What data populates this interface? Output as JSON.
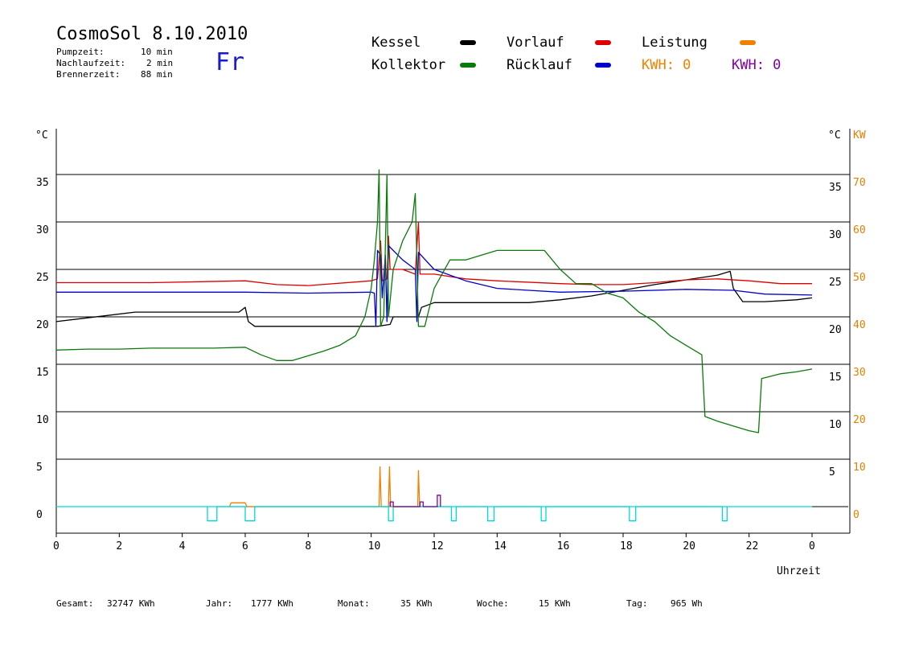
{
  "header": {
    "title": "CosmoSol 8.10.2010",
    "pumpzeit_label": "Pumpzeit:",
    "pumpzeit_value": "10 min",
    "nachlaufzeit_label": "Nachlaufzeit:",
    "nachlaufzeit_value": "2 min",
    "brennerzeit_label": "Brennerzeit:",
    "brennerzeit_value": "88 min",
    "weekday": "Fr"
  },
  "legend": {
    "kessel": "Kessel",
    "kollektor": "Kollektor",
    "vorlauf": "Vorlauf",
    "ruecklauf": "Rücklauf",
    "leistung": "Leistung",
    "kwh_orange": "KWH: 0",
    "kwh_purple": "KWH: 0"
  },
  "footer": {
    "gesamt_label": "Gesamt:",
    "gesamt_value": "32747 KWh",
    "jahr_label": "Jahr:",
    "jahr_value": "1777 KWh",
    "monat_label": "Monat:",
    "monat_value": "35 KWh",
    "woche_label": "Woche:",
    "woche_value": "15 KWh",
    "tag_label": "Tag:",
    "tag_value": "965 Wh"
  },
  "colors": {
    "kessel": "#000000",
    "kollektor": "#0a7a0a",
    "vorlauf": "#dd0000",
    "ruecklauf": "#0000cc",
    "leistung": "#f08000",
    "kwh_purple": "#8000a0",
    "pump": "#00d8d8"
  },
  "chart_data": {
    "type": "line",
    "xlabel": "Uhrzeit",
    "ylabel_left": "°C",
    "ylabel_right_1": "°C",
    "ylabel_right_2": "KW",
    "xlim": [
      0,
      24
    ],
    "ylim": [
      -2.5,
      40
    ],
    "x_ticks": [
      "0",
      "2",
      "4",
      "6",
      "8",
      "10",
      "12",
      "14",
      "16",
      "18",
      "20",
      "22",
      "0"
    ],
    "y_ticks_left": [
      "0",
      "5",
      "10",
      "15",
      "20",
      "25",
      "30",
      "35"
    ],
    "y_ticks_right": [
      "5",
      "10",
      "15",
      "20",
      "25",
      "30",
      "35"
    ],
    "y_ticks_kw": [
      "0",
      "10",
      "20",
      "30",
      "40",
      "50",
      "60",
      "70"
    ],
    "series": [
      {
        "name": "Kessel",
        "color": "#000000",
        "points": [
          [
            0,
            19.5
          ],
          [
            1,
            19.9
          ],
          [
            2.5,
            20.5
          ],
          [
            5.8,
            20.5
          ],
          [
            6.0,
            21.0
          ],
          [
            6.1,
            19.5
          ],
          [
            6.3,
            19.0
          ],
          [
            10.2,
            19.0
          ],
          [
            10.6,
            19.2
          ],
          [
            10.7,
            20.0
          ],
          [
            11.5,
            20.0
          ],
          [
            11.6,
            21.0
          ],
          [
            12.0,
            21.5
          ],
          [
            15.0,
            21.5
          ],
          [
            16.0,
            21.8
          ],
          [
            17.0,
            22.2
          ],
          [
            18.0,
            22.8
          ],
          [
            19.0,
            23.4
          ],
          [
            20.0,
            23.9
          ],
          [
            21.0,
            24.4
          ],
          [
            21.4,
            24.8
          ],
          [
            21.5,
            23.0
          ],
          [
            21.8,
            21.6
          ],
          [
            22.5,
            21.6
          ],
          [
            23.5,
            21.8
          ],
          [
            24.0,
            22.0
          ]
        ]
      },
      {
        "name": "Vorlauf",
        "color": "#dd0000",
        "points": [
          [
            0,
            23.6
          ],
          [
            3,
            23.6
          ],
          [
            6,
            23.8
          ],
          [
            7,
            23.4
          ],
          [
            8,
            23.3
          ],
          [
            10,
            23.8
          ],
          [
            10.2,
            24.0
          ],
          [
            10.3,
            28.0
          ],
          [
            10.35,
            23.8
          ],
          [
            10.5,
            24.0
          ],
          [
            10.55,
            28.5
          ],
          [
            10.6,
            25.0
          ],
          [
            11.0,
            25.0
          ],
          [
            11.4,
            24.5
          ],
          [
            11.5,
            30.0
          ],
          [
            11.55,
            24.5
          ],
          [
            12.0,
            24.5
          ],
          [
            13.0,
            24.0
          ],
          [
            14.0,
            23.8
          ],
          [
            16.0,
            23.5
          ],
          [
            17.0,
            23.4
          ],
          [
            18.0,
            23.4
          ],
          [
            19.0,
            23.6
          ],
          [
            20.0,
            23.9
          ],
          [
            21.0,
            24.0
          ],
          [
            22.0,
            23.8
          ],
          [
            23.0,
            23.5
          ],
          [
            24.0,
            23.5
          ]
        ]
      },
      {
        "name": "Rücklauf",
        "color": "#0000cc",
        "points": [
          [
            0,
            22.6
          ],
          [
            4,
            22.6
          ],
          [
            6,
            22.6
          ],
          [
            8,
            22.5
          ],
          [
            10,
            22.6
          ],
          [
            10.1,
            22.5
          ],
          [
            10.15,
            19.0
          ],
          [
            10.2,
            27.0
          ],
          [
            10.3,
            26.5
          ],
          [
            10.35,
            22.0
          ],
          [
            10.45,
            26.5
          ],
          [
            10.5,
            19.5
          ],
          [
            10.55,
            27.5
          ],
          [
            11.0,
            26.0
          ],
          [
            11.4,
            25.0
          ],
          [
            11.45,
            19.5
          ],
          [
            11.5,
            26.8
          ],
          [
            12.0,
            25.0
          ],
          [
            13.0,
            23.8
          ],
          [
            14.0,
            23.0
          ],
          [
            15.0,
            22.8
          ],
          [
            16.0,
            22.6
          ],
          [
            18.0,
            22.7
          ],
          [
            20.0,
            22.9
          ],
          [
            21.5,
            22.8
          ],
          [
            22.5,
            22.4
          ],
          [
            24.0,
            22.3
          ]
        ]
      },
      {
        "name": "Kollektor",
        "color": "#0a7a0a",
        "points": [
          [
            0,
            16.5
          ],
          [
            1,
            16.6
          ],
          [
            2,
            16.6
          ],
          [
            3,
            16.7
          ],
          [
            4,
            16.7
          ],
          [
            5,
            16.7
          ],
          [
            6,
            16.8
          ],
          [
            6.5,
            16.0
          ],
          [
            7.0,
            15.4
          ],
          [
            7.5,
            15.4
          ],
          [
            8.0,
            15.9
          ],
          [
            8.5,
            16.4
          ],
          [
            9.0,
            17.0
          ],
          [
            9.5,
            18.0
          ],
          [
            9.8,
            20.0
          ],
          [
            10.0,
            23.0
          ],
          [
            10.1,
            26.0
          ],
          [
            10.2,
            30.0
          ],
          [
            10.25,
            35.5
          ],
          [
            10.3,
            19.0
          ],
          [
            10.4,
            20.0
          ],
          [
            10.5,
            35.0
          ],
          [
            10.55,
            20.0
          ],
          [
            10.7,
            25.0
          ],
          [
            11.0,
            28.0
          ],
          [
            11.3,
            30.0
          ],
          [
            11.4,
            33.0
          ],
          [
            11.5,
            19.0
          ],
          [
            11.7,
            19.0
          ],
          [
            12.0,
            23.0
          ],
          [
            12.5,
            26.0
          ],
          [
            13.0,
            26.0
          ],
          [
            13.5,
            26.5
          ],
          [
            14.0,
            27.0
          ],
          [
            15.0,
            27.0
          ],
          [
            15.5,
            27.0
          ],
          [
            16.0,
            25.0
          ],
          [
            16.5,
            23.5
          ],
          [
            17.0,
            23.5
          ],
          [
            17.5,
            22.5
          ],
          [
            18.0,
            22.0
          ],
          [
            18.5,
            20.5
          ],
          [
            19.0,
            19.5
          ],
          [
            19.5,
            18.0
          ],
          [
            20.0,
            17.0
          ],
          [
            20.5,
            16.0
          ],
          [
            20.6,
            9.5
          ],
          [
            21.0,
            9.0
          ],
          [
            21.5,
            8.5
          ],
          [
            22.0,
            8.0
          ],
          [
            22.3,
            7.8
          ],
          [
            22.4,
            13.5
          ],
          [
            23.0,
            14.0
          ],
          [
            23.5,
            14.2
          ],
          [
            24.0,
            14.5
          ]
        ]
      },
      {
        "name": "Leistung",
        "color": "#f08000",
        "points": [
          [
            5.5,
            0
          ],
          [
            5.55,
            0.4
          ],
          [
            6.0,
            0.4
          ],
          [
            6.05,
            0
          ],
          [
            10.25,
            0
          ],
          [
            10.28,
            4.2
          ],
          [
            10.32,
            0
          ],
          [
            10.55,
            0
          ],
          [
            10.58,
            4.2
          ],
          [
            10.62,
            0
          ],
          [
            11.48,
            0
          ],
          [
            11.5,
            3.8
          ],
          [
            11.54,
            0
          ]
        ]
      },
      {
        "name": "Pumpe",
        "color": "#00d8d8",
        "points": [
          [
            4.8,
            0
          ],
          [
            4.8,
            -1.5
          ],
          [
            5.1,
            -1.5
          ],
          [
            5.1,
            0
          ],
          [
            6.0,
            0
          ],
          [
            6.0,
            -1.5
          ],
          [
            6.3,
            -1.5
          ],
          [
            6.3,
            0
          ],
          [
            10.55,
            0
          ],
          [
            10.55,
            -1.5
          ],
          [
            10.7,
            -1.5
          ],
          [
            10.7,
            0
          ],
          [
            12.55,
            0
          ],
          [
            12.55,
            -1.5
          ],
          [
            12.7,
            -1.5
          ],
          [
            12.7,
            0
          ],
          [
            13.7,
            0
          ],
          [
            13.7,
            -1.5
          ],
          [
            13.9,
            -1.5
          ],
          [
            13.9,
            0
          ],
          [
            15.4,
            0
          ],
          [
            15.4,
            -1.5
          ],
          [
            15.55,
            -1.5
          ],
          [
            15.55,
            0
          ],
          [
            18.2,
            0
          ],
          [
            18.2,
            -1.5
          ],
          [
            18.4,
            -1.5
          ],
          [
            18.4,
            0
          ],
          [
            21.15,
            0
          ],
          [
            21.15,
            -1.5
          ],
          [
            21.3,
            -1.5
          ],
          [
            21.3,
            0
          ]
        ]
      },
      {
        "name": "KWH",
        "color": "#8000a0",
        "points": [
          [
            10.6,
            0
          ],
          [
            10.6,
            0.5
          ],
          [
            10.7,
            0.5
          ],
          [
            10.7,
            0
          ],
          [
            11.55,
            0
          ],
          [
            11.55,
            0.5
          ],
          [
            11.65,
            0.5
          ],
          [
            11.65,
            0
          ],
          [
            12.1,
            0
          ],
          [
            12.1,
            1.2
          ],
          [
            12.2,
            1.2
          ],
          [
            12.2,
            0
          ]
        ]
      }
    ]
  }
}
